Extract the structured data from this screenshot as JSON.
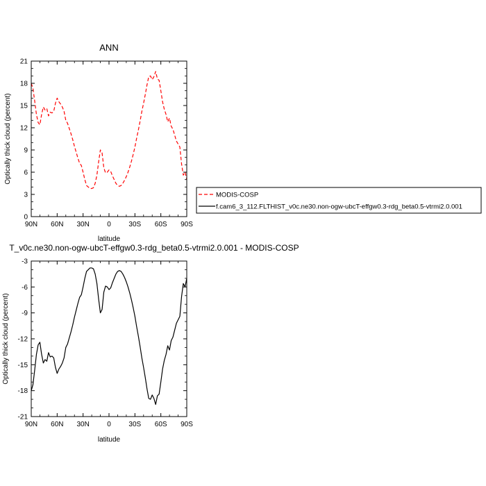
{
  "chart_data": [
    {
      "type": "line",
      "title": "ANN",
      "xlabel": "latitude",
      "ylabel": "Optically thick cloud (percent)",
      "x_tick_labels": [
        "90N",
        "60N",
        "30N",
        "0",
        "30S",
        "60S",
        "90S"
      ],
      "x_ticks": [
        90,
        60,
        30,
        0,
        -30,
        -60,
        -90
      ],
      "xlim": [
        90,
        -90
      ],
      "y_tick_labels": [
        "0",
        "3",
        "6",
        "9",
        "12",
        "15",
        "18",
        "21"
      ],
      "y_ticks": [
        0,
        3,
        6,
        9,
        12,
        15,
        18,
        21
      ],
      "ylim": [
        0,
        21
      ],
      "legend_position": "right",
      "series": [
        {
          "name": "MODIS-COSP",
          "color": "#ff0000",
          "dash": "dashed",
          "x": [
            90,
            88,
            86,
            84,
            82,
            80,
            78,
            76,
            74,
            72,
            70,
            68,
            66,
            64,
            62,
            60,
            58,
            56,
            54,
            52,
            50,
            48,
            46,
            44,
            42,
            40,
            38,
            36,
            34,
            32,
            30,
            28,
            26,
            24,
            22,
            20,
            18,
            16,
            14,
            12,
            10,
            8,
            6,
            4,
            2,
            0,
            -2,
            -4,
            -6,
            -8,
            -10,
            -12,
            -14,
            -16,
            -18,
            -20,
            -22,
            -24,
            -26,
            -28,
            -30,
            -32,
            -34,
            -36,
            -38,
            -40,
            -42,
            -44,
            -46,
            -48,
            -50,
            -52,
            -54,
            -56,
            -58,
            -60,
            -62,
            -64,
            -66,
            -68,
            -70,
            -72,
            -74,
            -76,
            -78,
            -80,
            -82,
            -84,
            -86,
            -88,
            -90
          ],
          "y": [
            18.0,
            17.3,
            15.6,
            13.8,
            12.7,
            12.4,
            13.8,
            14.8,
            14.4,
            14.6,
            13.6,
            14.1,
            14.0,
            14.2,
            15.3,
            16.0,
            15.5,
            15.2,
            14.8,
            14.2,
            13.0,
            12.6,
            11.9,
            11.2,
            10.4,
            9.5,
            8.7,
            7.9,
            7.2,
            6.9,
            6.0,
            5.0,
            4.2,
            4.0,
            3.8,
            3.8,
            3.9,
            4.5,
            5.6,
            7.4,
            9.0,
            8.6,
            6.6,
            5.9,
            6.0,
            6.3,
            6.1,
            5.5,
            5.0,
            4.5,
            4.2,
            4.1,
            4.2,
            4.5,
            4.9,
            5.4,
            6.0,
            6.7,
            7.5,
            8.4,
            9.4,
            10.6,
            11.7,
            12.9,
            14.2,
            15.3,
            16.5,
            17.8,
            18.9,
            19.0,
            18.5,
            18.9,
            19.6,
            18.6,
            18.4,
            17.0,
            15.5,
            14.5,
            13.8,
            12.8,
            13.3,
            12.2,
            11.8,
            11.0,
            10.2,
            9.8,
            9.4,
            7.1,
            5.6,
            6.0,
            5.0
          ]
        },
        {
          "name": "f.cam6_3_112.FLTHIST_v0c.ne30.non-ogw-ubcT-effgw0.3-rdg_beta0.5-vtrmi2.0.001",
          "color": "#000000",
          "dash": "solid",
          "x": [],
          "y": []
        }
      ]
    },
    {
      "type": "line",
      "title": "T_v0c.ne30.non-ogw-ubcT-effgw0.3-rdg_beta0.5-vtrmi2.0.001 - MODIS-COSP",
      "xlabel": "latitude",
      "ylabel": "Optically thick cloud (percent)",
      "x_tick_labels": [
        "90N",
        "60N",
        "30N",
        "0",
        "30S",
        "60S",
        "90S"
      ],
      "x_ticks": [
        90,
        60,
        30,
        0,
        -30,
        -60,
        -90
      ],
      "xlim": [
        90,
        -90
      ],
      "y_tick_labels": [
        "-3",
        "-6",
        "-9",
        "-12",
        "-15",
        "-18",
        "-21"
      ],
      "y_ticks": [
        -3,
        -6,
        -9,
        -12,
        -15,
        -18,
        -21
      ],
      "ylim": [
        -21,
        -3
      ],
      "series": [
        {
          "name": "",
          "color": "#000000",
          "dash": "solid",
          "x": [
            90,
            88,
            86,
            84,
            82,
            80,
            78,
            76,
            74,
            72,
            70,
            68,
            66,
            64,
            62,
            60,
            58,
            56,
            54,
            52,
            50,
            48,
            46,
            44,
            42,
            40,
            38,
            36,
            34,
            32,
            30,
            28,
            26,
            24,
            22,
            20,
            18,
            16,
            14,
            12,
            10,
            8,
            6,
            4,
            2,
            0,
            -2,
            -4,
            -6,
            -8,
            -10,
            -12,
            -14,
            -16,
            -18,
            -20,
            -22,
            -24,
            -26,
            -28,
            -30,
            -32,
            -34,
            -36,
            -38,
            -40,
            -42,
            -44,
            -46,
            -48,
            -50,
            -52,
            -54,
            -56,
            -58,
            -60,
            -62,
            -64,
            -66,
            -68,
            -70,
            -72,
            -74,
            -76,
            -78,
            -80,
            -82,
            -84,
            -86,
            -88,
            -90
          ],
          "y": [
            -18.0,
            -17.3,
            -15.6,
            -13.8,
            -12.7,
            -12.4,
            -13.8,
            -14.8,
            -14.4,
            -14.6,
            -13.6,
            -14.1,
            -14.0,
            -14.2,
            -15.3,
            -16.0,
            -15.5,
            -15.2,
            -14.8,
            -14.2,
            -13.0,
            -12.6,
            -11.9,
            -11.2,
            -10.4,
            -9.5,
            -8.7,
            -7.9,
            -7.2,
            -6.9,
            -6.0,
            -5.0,
            -4.2,
            -4.0,
            -3.8,
            -3.8,
            -3.9,
            -4.5,
            -5.6,
            -7.4,
            -9.0,
            -8.6,
            -6.6,
            -5.9,
            -6.0,
            -6.3,
            -6.1,
            -5.5,
            -5.0,
            -4.5,
            -4.2,
            -4.1,
            -4.2,
            -4.5,
            -4.9,
            -5.4,
            -6.0,
            -6.7,
            -7.5,
            -8.4,
            -9.4,
            -10.6,
            -11.7,
            -12.9,
            -14.2,
            -15.3,
            -16.5,
            -17.8,
            -18.9,
            -19.0,
            -18.5,
            -18.9,
            -19.6,
            -18.6,
            -18.4,
            -17.0,
            -15.5,
            -14.5,
            -13.8,
            -12.8,
            -13.3,
            -12.2,
            -11.8,
            -11.0,
            -10.2,
            -9.8,
            -9.4,
            -7.1,
            -5.6,
            -6.0,
            -5.0
          ]
        }
      ]
    }
  ]
}
